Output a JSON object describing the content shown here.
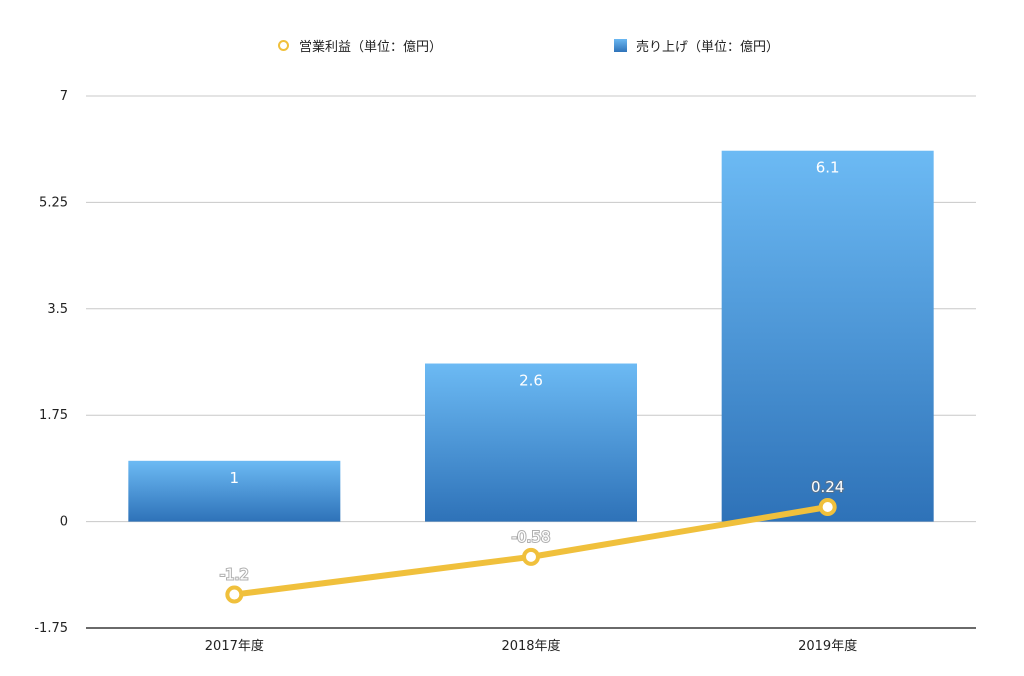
{
  "chart_data": {
    "type": "bar",
    "categories": [
      "2017年度",
      "2018年度",
      "2019年度"
    ],
    "series": [
      {
        "name": "売り上げ（単位：億円）",
        "kind": "bar",
        "color": "#4f95d6",
        "values": [
          1,
          2.6,
          6.1
        ]
      },
      {
        "name": "営業利益（単位：億円）",
        "kind": "line",
        "color": "#f0c03c",
        "values": [
          -1.2,
          -0.58,
          0.24
        ]
      }
    ],
    "ylim": [
      -1.75,
      7
    ],
    "yticks": [
      "7",
      "5.25",
      "3.5",
      "1.75",
      "0",
      "-1.75"
    ],
    "ytick_values": [
      7,
      5.25,
      3.5,
      1.75,
      0,
      -1.75
    ],
    "data_labels": {
      "bar": [
        "1",
        "2.6",
        "6.1"
      ],
      "line": [
        "-1.2",
        "-0.58",
        "0.24"
      ]
    },
    "grid": true,
    "legend": "top-center",
    "title": "",
    "xlabel": "",
    "ylabel": ""
  },
  "legend": {
    "line_label": "営業利益（単位：億円）",
    "bar_label": "売り上げ（単位：億円）"
  }
}
